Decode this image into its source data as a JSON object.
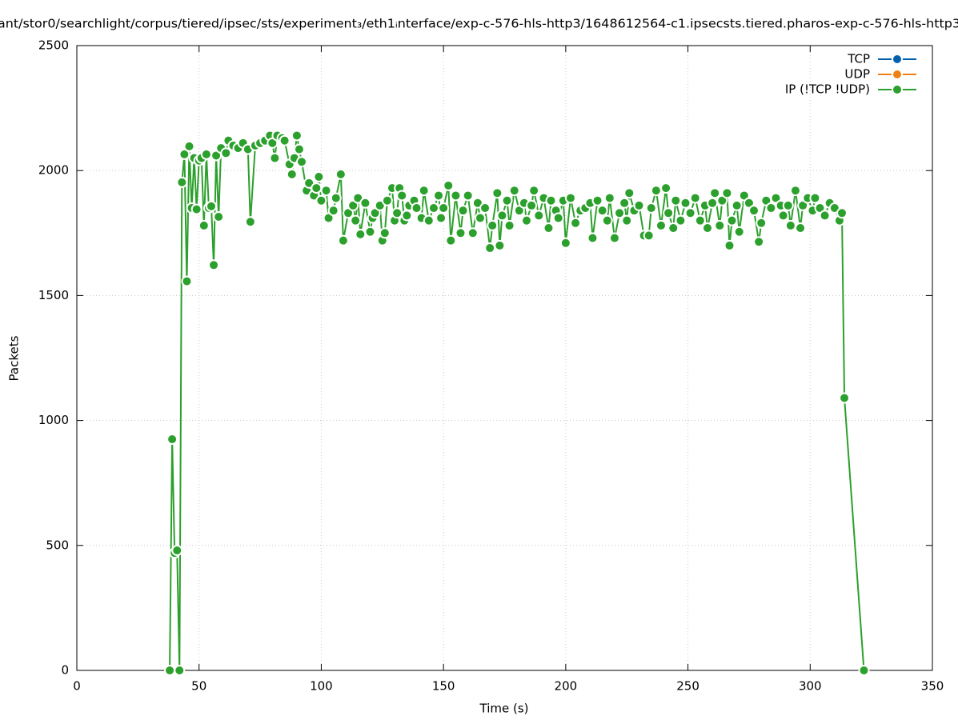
{
  "chart_data": {
    "type": "line",
    "title": "ant/stor0/searchlight/corpus/tiered/ipsec/sts/experiment₃/eth1ᵢnterface/exp-c-576-hls-http3/1648612564-c1.ipsecsts.tiered.pharos-exp-c-576-hls-http3",
    "xlabel": "Time (s)",
    "ylabel": "Packets",
    "xlim": [
      0,
      350
    ],
    "ylim": [
      0,
      2500
    ],
    "xticks": [
      0,
      50,
      100,
      150,
      200,
      250,
      300,
      350
    ],
    "yticks": [
      0,
      500,
      1000,
      1500,
      2000,
      2500
    ],
    "grid": true,
    "legend": "top-right",
    "series": [
      {
        "name": "TCP",
        "color": "#0060ad",
        "x": [],
        "values": []
      },
      {
        "name": "UDP",
        "color": "#f07f14",
        "x": [],
        "values": []
      },
      {
        "name": "IP (!TCP  !UDP)",
        "color": "#2ca02c",
        "x": [
          38,
          39,
          40,
          41,
          42,
          43,
          44,
          45,
          46,
          47,
          48,
          49,
          50,
          51,
          52,
          53,
          54,
          55,
          56,
          57,
          58,
          59,
          61,
          62,
          64,
          66,
          68,
          70,
          71,
          73,
          75,
          77,
          79,
          80,
          81,
          82,
          84,
          85,
          87,
          88,
          89,
          90,
          91,
          92,
          94,
          95,
          97,
          98,
          99,
          100,
          102,
          103,
          105,
          106,
          108,
          109,
          111,
          113,
          114,
          115,
          116,
          118,
          120,
          121,
          122,
          124,
          125,
          126,
          127,
          129,
          130,
          131,
          132,
          133,
          134,
          135,
          136,
          138,
          139,
          141,
          142,
          144,
          146,
          148,
          149,
          150,
          152,
          153,
          155,
          157,
          158,
          160,
          162,
          164,
          165,
          167,
          169,
          170,
          172,
          173,
          174,
          176,
          177,
          179,
          181,
          183,
          184,
          186,
          187,
          189,
          191,
          193,
          194,
          196,
          197,
          199,
          200,
          202,
          204,
          206,
          208,
          210,
          211,
          213,
          215,
          217,
          218,
          220,
          222,
          224,
          225,
          226,
          228,
          230,
          232,
          234,
          235,
          237,
          239,
          241,
          242,
          244,
          245,
          247,
          249,
          251,
          253,
          255,
          257,
          258,
          260,
          261,
          263,
          264,
          266,
          267,
          268,
          270,
          271,
          273,
          275,
          277,
          279,
          280,
          282,
          284,
          286,
          288,
          289,
          291,
          292,
          294,
          296,
          297,
          299,
          301,
          302,
          304,
          306,
          308,
          310,
          312,
          313,
          314,
          322
        ],
        "values": [
          0,
          925,
          470,
          480,
          0,
          1953,
          2065,
          1557,
          2097,
          1850,
          2050,
          1845,
          2040,
          2050,
          1780,
          2065,
          1850,
          1857,
          1622,
          2060,
          1815,
          2090,
          2070,
          2120,
          2100,
          2090,
          2110,
          2085,
          1795,
          2100,
          2110,
          2120,
          2140,
          2110,
          2050,
          2140,
          2130,
          2120,
          2025,
          1985,
          2050,
          2140,
          2085,
          2035,
          1920,
          1950,
          1900,
          1930,
          1975,
          1880,
          1920,
          1810,
          1840,
          1890,
          1985,
          1720,
          1830,
          1860,
          1800,
          1890,
          1745,
          1870,
          1755,
          1810,
          1830,
          1860,
          1720,
          1750,
          1880,
          1930,
          1800,
          1830,
          1930,
          1900,
          1800,
          1820,
          1860,
          1880,
          1850,
          1810,
          1920,
          1800,
          1850,
          1900,
          1810,
          1850,
          1940,
          1720,
          1900,
          1750,
          1840,
          1900,
          1750,
          1870,
          1810,
          1850,
          1690,
          1780,
          1910,
          1700,
          1820,
          1880,
          1780,
          1920,
          1840,
          1870,
          1800,
          1860,
          1920,
          1820,
          1890,
          1770,
          1880,
          1840,
          1810,
          1880,
          1710,
          1890,
          1790,
          1840,
          1850,
          1870,
          1730,
          1880,
          1840,
          1800,
          1890,
          1730,
          1830,
          1870,
          1800,
          1910,
          1840,
          1860,
          1740,
          1740,
          1850,
          1920,
          1780,
          1930,
          1830,
          1770,
          1880,
          1800,
          1870,
          1830,
          1890,
          1800,
          1860,
          1770,
          1870,
          1910,
          1780,
          1880,
          1910,
          1700,
          1800,
          1860,
          1755,
          1900,
          1870,
          1840,
          1715,
          1790,
          1880,
          1850,
          1890,
          1860,
          1820,
          1860,
          1780,
          1920,
          1770,
          1860,
          1890,
          1840,
          1890,
          1850,
          1820,
          1870,
          1850,
          1800,
          1830,
          1090,
          0
        ]
      }
    ]
  }
}
